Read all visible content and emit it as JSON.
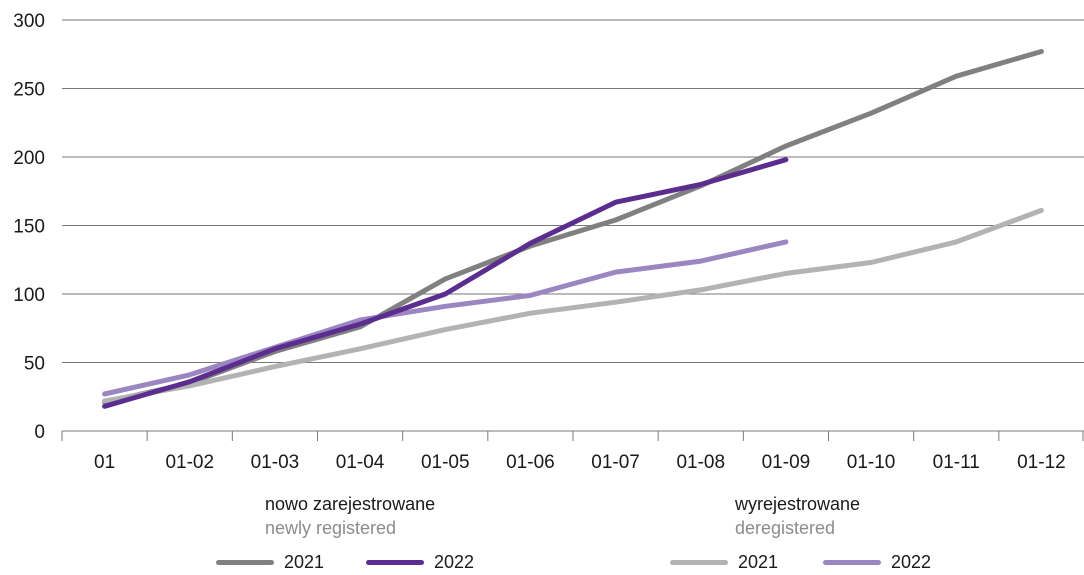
{
  "chart_data": {
    "type": "line",
    "categories": [
      "01",
      "01-02",
      "01-03",
      "01-04",
      "01-05",
      "01-06",
      "01-07",
      "01-08",
      "01-09",
      "01-10",
      "01-11",
      "01-12"
    ],
    "ylim": [
      0,
      300
    ],
    "yticks": [
      0,
      50,
      100,
      150,
      200,
      250,
      300
    ],
    "grid": true,
    "series": [
      {
        "key": "reg2021",
        "group": "newly_registered",
        "name": "2021",
        "color": "#808080",
        "values": [
          21,
          35,
          58,
          76,
          111,
          135,
          154,
          179,
          208,
          232,
          259,
          277
        ]
      },
      {
        "key": "dereg2021",
        "group": "deregistered",
        "name": "2021",
        "color": "#b3b3b3",
        "values": [
          22,
          33,
          47,
          60,
          74,
          86,
          94,
          103,
          115,
          123,
          138,
          161
        ]
      },
      {
        "key": "dereg2022",
        "group": "deregistered",
        "name": "2022",
        "color": "#9b86c2",
        "values": [
          27,
          41,
          61,
          81,
          91,
          99,
          116,
          124,
          138,
          null,
          null,
          null
        ]
      },
      {
        "key": "reg2022",
        "group": "newly_registered",
        "name": "2022",
        "color": "#5b2d8e",
        "values": [
          18,
          36,
          60,
          78,
          100,
          137,
          167,
          180,
          198,
          null,
          null,
          null
        ]
      }
    ],
    "legend": {
      "newly_registered": {
        "title": "nowo zarejestrowane",
        "subtitle": "newly registered"
      },
      "deregistered": {
        "title": "wyrejestrowane",
        "subtitle": "deregistered"
      }
    }
  }
}
